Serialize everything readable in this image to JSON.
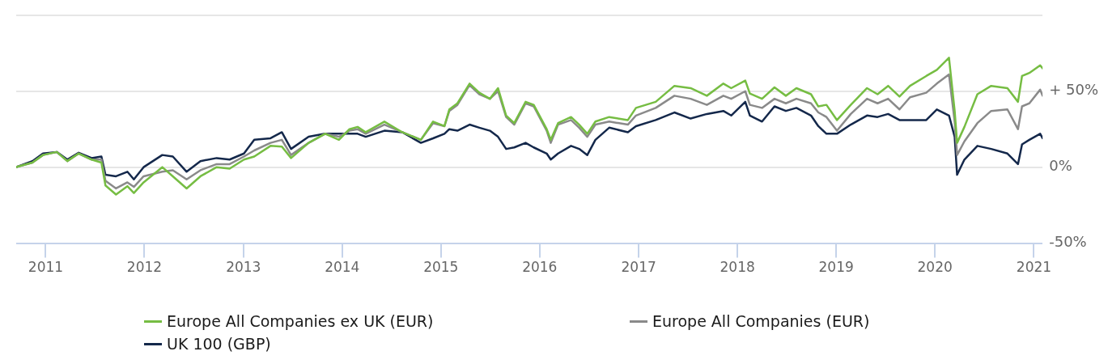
{
  "chart_data": {
    "type": "line",
    "x": [
      "2010-09-14",
      "2010-11-13",
      "2010-12-22",
      "2011-02-11",
      "2011-03-22",
      "2011-05-03",
      "2011-06-20",
      "2011-07-26",
      "2011-08-10",
      "2011-09-18",
      "2011-10-30",
      "2011-11-23",
      "2011-12-29",
      "2012-03-07",
      "2012-04-15",
      "2012-06-05",
      "2012-07-26",
      "2012-09-24",
      "2012-11-11",
      "2013-01-03",
      "2013-02-10",
      "2013-04-11",
      "2013-05-23",
      "2013-06-26",
      "2013-08-30",
      "2013-10-30",
      "2013-12-20",
      "2014-01-28",
      "2014-02-27",
      "2014-03-29",
      "2014-06-06",
      "2014-08-11",
      "2014-10-19",
      "2014-12-03",
      "2015-01-14",
      "2015-02-01",
      "2015-03-03",
      "2015-04-17",
      "2015-05-23",
      "2015-07-01",
      "2015-07-31",
      "2015-08-30",
      "2015-09-29",
      "2015-11-10",
      "2015-12-10",
      "2016-01-27",
      "2016-02-11",
      "2016-03-09",
      "2016-04-26",
      "2016-05-26",
      "2016-06-25",
      "2016-07-25",
      "2016-09-14",
      "2016-11-22",
      "2016-12-22",
      "2017-03-05",
      "2017-05-13",
      "2017-07-12",
      "2017-09-10",
      "2017-11-10",
      "2017-12-09",
      "2018-01-30",
      "2018-02-16",
      "2018-04-02",
      "2018-05-18",
      "2018-06-29",
      "2018-08-07",
      "2018-09-30",
      "2018-10-27",
      "2018-11-26",
      "2019-01-04",
      "2019-02-24",
      "2019-04-25",
      "2019-06-03",
      "2019-07-12",
      "2019-08-23",
      "2019-10-01",
      "2019-11-30",
      "2020-01-08",
      "2020-02-22",
      "2020-03-14",
      "2020-03-23",
      "2020-04-19",
      "2020-06-06",
      "2020-07-27",
      "2020-09-25",
      "2020-11-03",
      "2020-11-18",
      "2020-12-15",
      "2021-01-24",
      "2021-02-02"
    ],
    "series": [
      {
        "name": "Europe All Companies ex UK (EUR)",
        "color": "#76bd43",
        "values": [
          0,
          3,
          8,
          10,
          4,
          9,
          5,
          3,
          -12,
          -18,
          -12.5,
          -17,
          -10,
          0,
          -6,
          -14,
          -6,
          0,
          -1,
          5,
          7,
          14,
          13.5,
          6,
          16,
          22,
          18,
          25,
          26.5,
          23,
          30,
          23,
          18,
          30,
          27,
          38,
          42,
          55,
          49,
          45,
          52,
          34,
          29,
          43,
          41,
          25,
          18,
          29,
          33,
          28,
          22,
          30,
          33,
          31,
          39,
          43,
          53.5,
          52,
          47,
          55,
          52,
          57,
          48.5,
          45,
          52.5,
          47,
          52,
          48,
          40,
          41,
          31,
          41,
          52,
          48,
          53.5,
          46.5,
          53.5,
          60,
          64,
          72,
          37,
          16,
          26.5,
          48,
          53.5,
          52,
          43,
          60,
          62,
          67,
          65
        ]
      },
      {
        "name": "Europe All Companies (EUR)",
        "color": "#8a8a8a",
        "values": [
          0,
          3,
          8,
          10,
          4,
          9,
          5,
          5,
          -9,
          -14,
          -10,
          -13,
          -6,
          -3,
          -2,
          -8,
          -2,
          2,
          2,
          7,
          11,
          16,
          18,
          8,
          16,
          22,
          20,
          24,
          25,
          22,
          28,
          23,
          18,
          29,
          27,
          37,
          41,
          54,
          48,
          45,
          50,
          33,
          28,
          42,
          40,
          24,
          16,
          28,
          31,
          26,
          20,
          28,
          30,
          28,
          34,
          39,
          47,
          45,
          41,
          47,
          45,
          50,
          41,
          39,
          45,
          42,
          45,
          42,
          36,
          33,
          24,
          35,
          45,
          42,
          45,
          38,
          46,
          49,
          55,
          61,
          30,
          8,
          17,
          29,
          37,
          38,
          25,
          40,
          42,
          51,
          47
        ]
      },
      {
        "name": "UK 100 (GBP)",
        "color": "#14284b",
        "values": [
          0,
          4,
          9,
          10,
          5,
          9.5,
          6,
          7,
          -5,
          -6,
          -3,
          -8,
          0,
          8,
          7,
          -3,
          4,
          6,
          5,
          9,
          18,
          19,
          23,
          12,
          20,
          22,
          22,
          22,
          22,
          20,
          24,
          23,
          16,
          19,
          22,
          25,
          24,
          28,
          26,
          24,
          20,
          12,
          13,
          16,
          13,
          9,
          5,
          9,
          14,
          12,
          8,
          18,
          26,
          23,
          27,
          31,
          36,
          32,
          35,
          37,
          34,
          43,
          34,
          30,
          40,
          37,
          39,
          34,
          27,
          22,
          22,
          28,
          34,
          33,
          35,
          31,
          31,
          31,
          38,
          34,
          20,
          -5,
          5,
          14,
          12,
          9,
          2,
          15,
          18,
          22,
          19
        ]
      }
    ],
    "xlim": [
      "2010-09-14",
      "2021-02-02"
    ],
    "xticks": [
      "2011",
      "2012",
      "2013",
      "2014",
      "2015",
      "2016",
      "2017",
      "2018",
      "2019",
      "2020",
      "2021"
    ],
    "ylim": [
      -50,
      100
    ],
    "yticks": [
      {
        "value": -50,
        "label": "-50%"
      },
      {
        "value": 0,
        "label": "0%"
      },
      {
        "value": 50,
        "label": "+ 50%"
      },
      {
        "value": 100,
        "label": null
      }
    ],
    "grid": "y",
    "legend": "bottom",
    "marker": "none",
    "line_style": "solid"
  }
}
